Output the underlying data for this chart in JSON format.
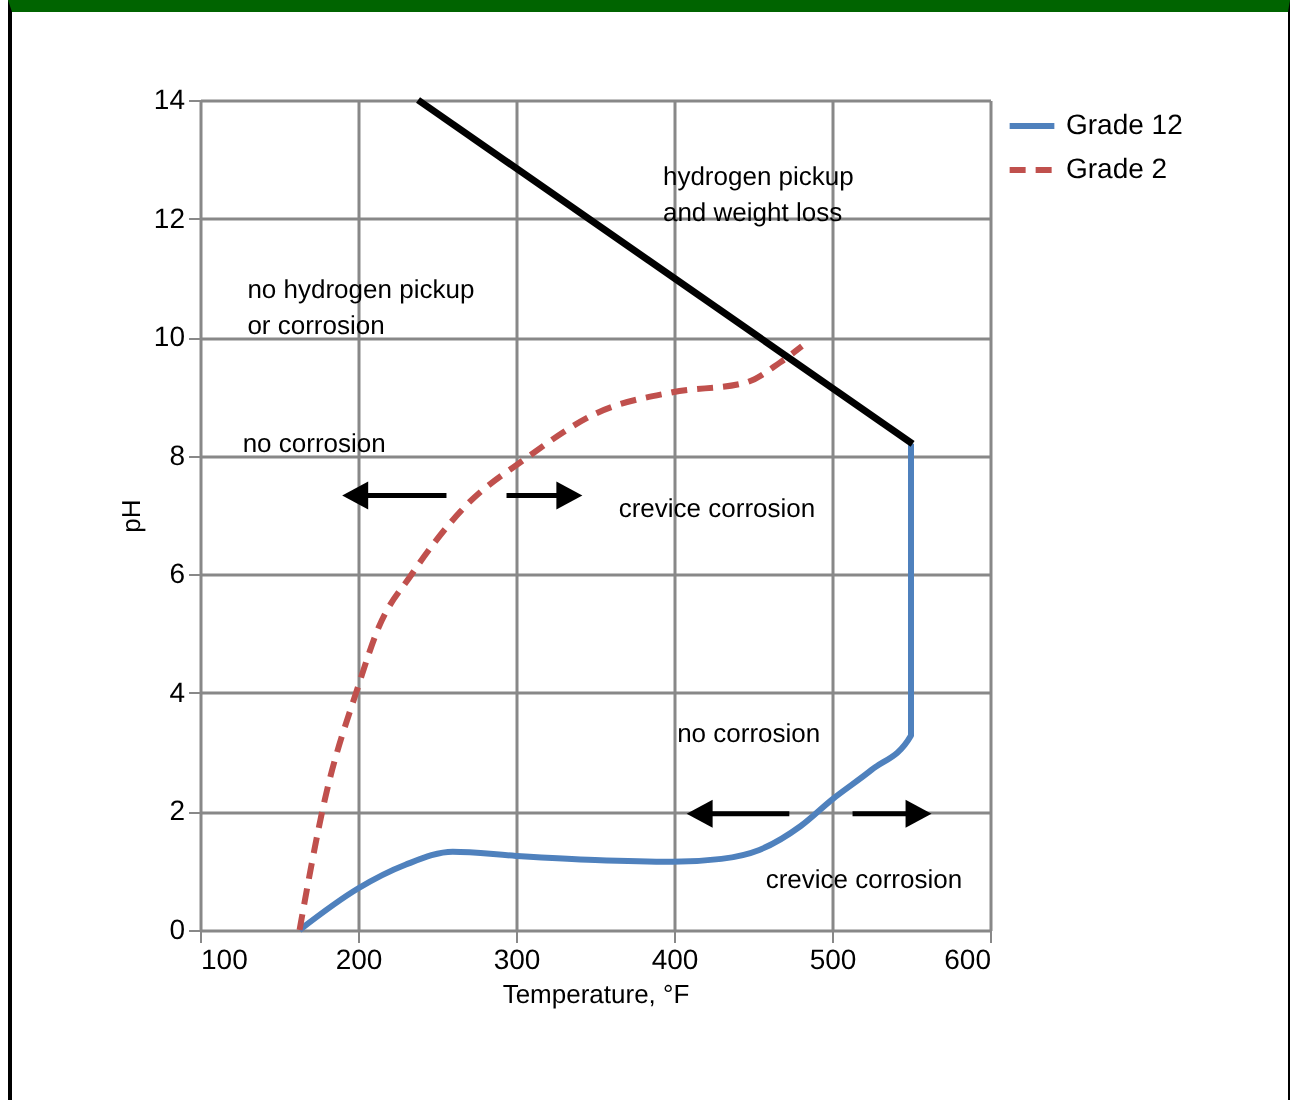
{
  "chart_data": {
    "type": "line",
    "xlabel": "Temperature, °F",
    "ylabel": "pH",
    "xlim": [
      100,
      600
    ],
    "xticks": [
      100,
      200,
      300,
      400,
      500,
      600
    ],
    "ylim": [
      0,
      14
    ],
    "yticks": [
      0,
      2,
      4,
      6,
      8,
      10,
      12,
      14
    ],
    "grid": true,
    "legend": "right",
    "series": [
      {
        "name": "Grade 12",
        "color": "#4f81bd",
        "line_style": "solid",
        "x": [
          163,
          200,
          230,
          260,
          300,
          350,
          399,
          430,
          454,
          480,
          500,
          525,
          550,
          550
        ],
        "values": [
          0,
          0.7,
          1.1,
          1.32,
          1.25,
          1.18,
          1.15,
          1.2,
          1.35,
          1.75,
          2.2,
          2.7,
          3.28,
          8.2
        ]
      },
      {
        "name": "Grade 2",
        "color": "#c0504d",
        "line_style": "dashed",
        "x": [
          163,
          179,
          200,
          213,
          234,
          268,
          306,
          352,
          399,
          445,
          467,
          481
        ],
        "values": [
          0,
          2.2,
          4.1,
          5.1,
          6.0,
          7.15,
          7.95,
          8.73,
          9.07,
          9.23,
          9.57,
          9.85
        ]
      },
      {
        "color": "#000000",
        "line_style": "solid",
        "x": [
          238,
          551
        ],
        "values": [
          14,
          8.2
        ]
      }
    ],
    "annotations": [
      "hydrogen pickup\nand weight loss",
      "no hydrogen pickup\nor corrosion",
      "no corrosion",
      "crevice corrosion",
      "no corrosion",
      "crevice corrosion"
    ]
  }
}
